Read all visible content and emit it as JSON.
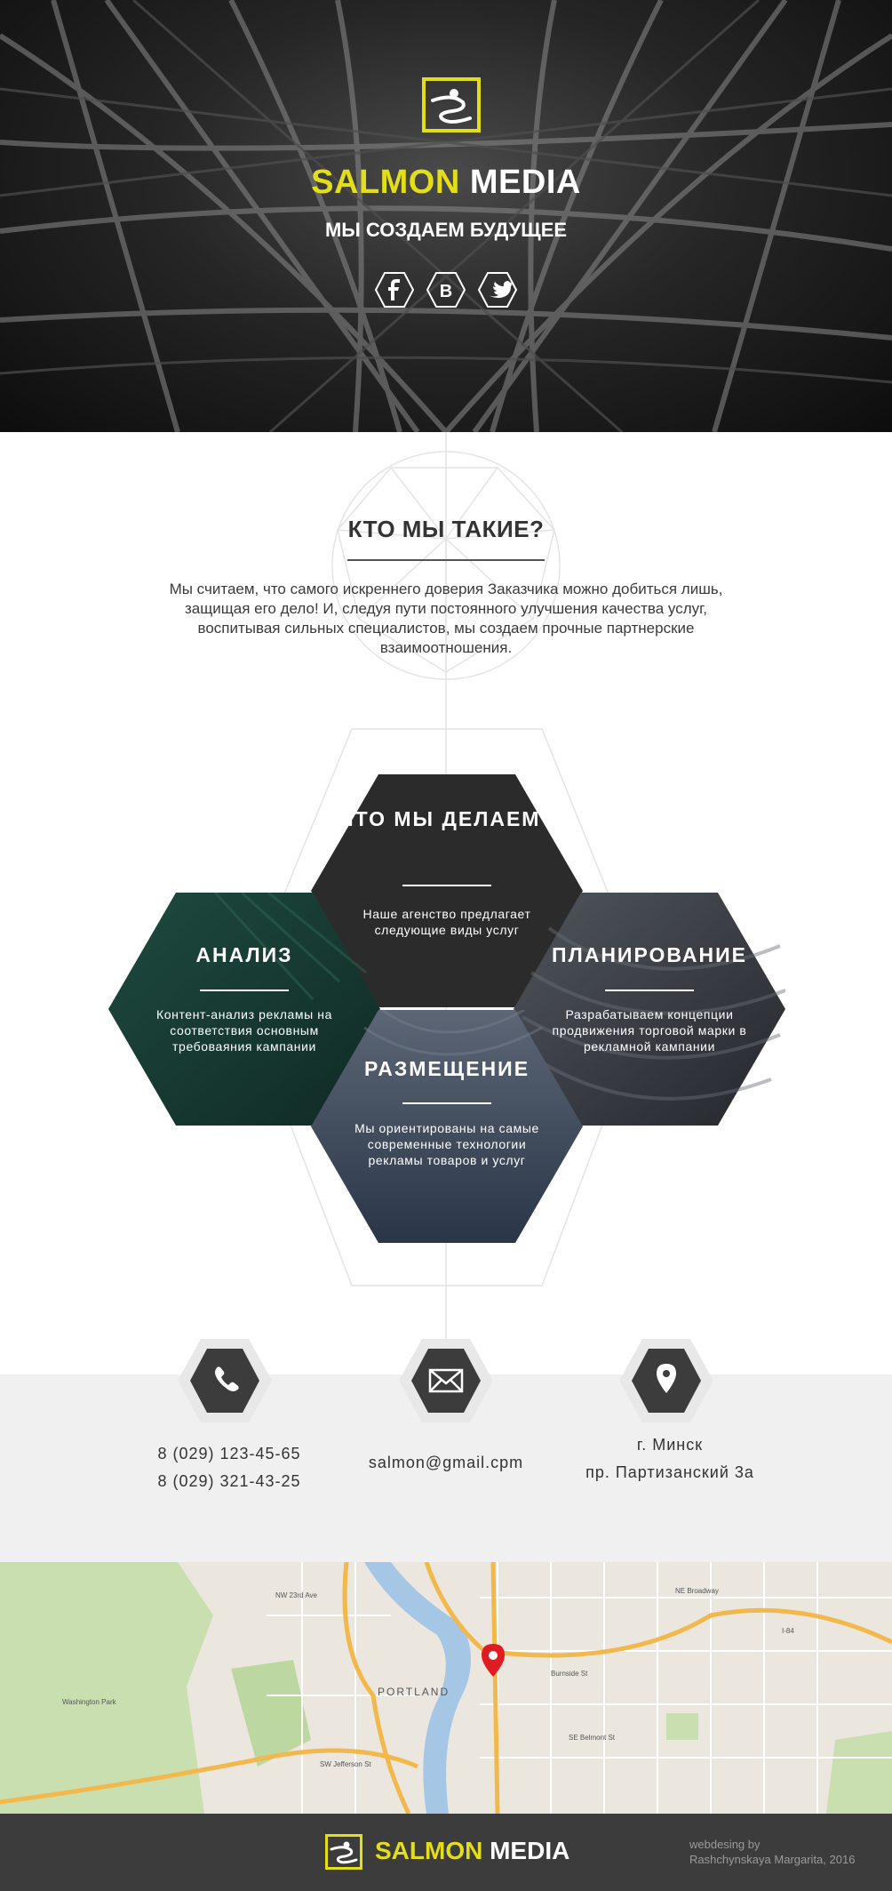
{
  "brand": {
    "name_part1": "SALMON",
    "name_part2": "MEDIA",
    "accent_color": "#e3de1a"
  },
  "hero": {
    "tagline": "МЫ СОЗДАЕМ БУДУЩЕЕ",
    "social": [
      {
        "icon": "facebook-icon",
        "glyph": "f"
      },
      {
        "icon": "vk-icon",
        "glyph": "B"
      },
      {
        "icon": "twitter-icon",
        "glyph": "twitter"
      }
    ]
  },
  "about": {
    "title": "КТО МЫ ТАКИЕ?",
    "text": "Мы считаем, что самого искреннего доверия Заказчика можно добиться лишь, защищая его дело! И, следуя пути постоянного улучшения качества услуг, воспитывая сильных специалистов, мы создаем прочные партнерские взаимоотношения."
  },
  "services": {
    "center": {
      "title": "ЧТО МЫ ДЕЛАЕМ?",
      "desc": "Наше агенство предлагает следующие виды услуг"
    },
    "analysis": {
      "title": "АНАЛИЗ",
      "desc": "Контент-анализ рекламы на соответствия основным требоваяния кампании"
    },
    "planning": {
      "title": "ПЛАНИРОВАНИЕ",
      "desc": "Разрабатываем концепции продвижения торговой марки в рекламной кампании"
    },
    "placement": {
      "title": "РАЗМЕЩЕНИЕ",
      "desc": "Мы ориентированы на самые современные технологии рекламы товаров и услуг"
    },
    "colors": {
      "center": "#2b2b2b",
      "analysis": "#1c3d35",
      "planning": "#3a3f47",
      "placement": "#2e3b4e"
    }
  },
  "contacts": {
    "phone1": "8 (029) 123-45-65",
    "phone2": "8 (029) 321-43-25",
    "email": "salmon@gmail.cpm",
    "city": "г. Минск",
    "street": "пр. Партизанский 3а",
    "icons": [
      "phone-icon",
      "mail-icon",
      "location-pin-icon"
    ]
  },
  "map": {
    "labels": {
      "portland": "PORTLAND",
      "burnside": "Burnside St",
      "nw23": "NW 23rd Ave",
      "sw": "SW Jefferson St",
      "se": "SE Belmont St",
      "ne": "NE Broadway",
      "park": "Washington Park",
      "interstate": "I-84"
    },
    "marker_color": "#e11b22"
  },
  "footer": {
    "credit_line1": "webdesing by",
    "credit_line2": "Rashchynskaya Margarita, 2016"
  }
}
